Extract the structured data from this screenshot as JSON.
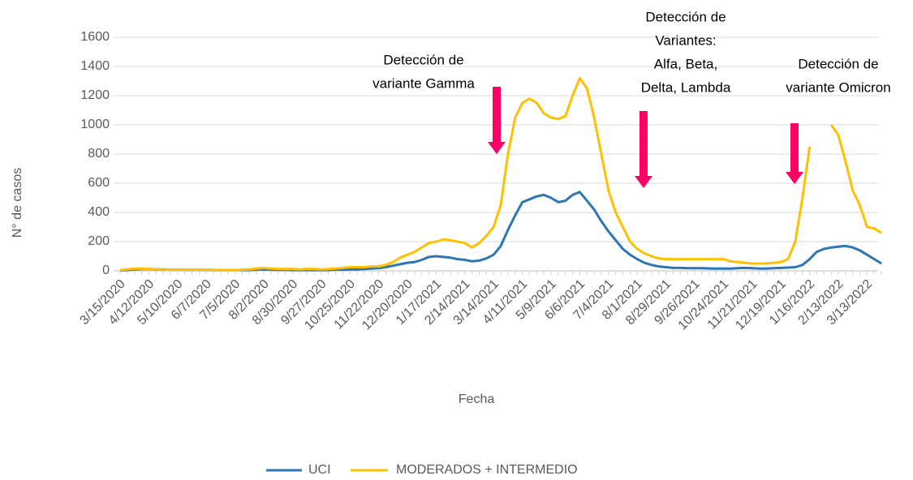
{
  "chart_data": {
    "type": "line",
    "x_label": "Fecha",
    "y_label": "N° de casos",
    "categories": [
      "3/15/2020",
      null,
      null,
      null,
      "4/12/2020",
      null,
      null,
      null,
      "5/10/2020",
      null,
      null,
      null,
      "6/7/2020",
      null,
      null,
      null,
      "7/5/2020",
      null,
      null,
      null,
      "8/2/2020",
      null,
      null,
      null,
      "8/30/2020",
      null,
      null,
      null,
      "9/27/2020",
      null,
      null,
      null,
      "10/25/2020",
      null,
      null,
      null,
      "11/22/2020",
      null,
      null,
      null,
      "12/20/2020",
      null,
      null,
      null,
      "1/17/2021",
      null,
      null,
      null,
      "2/14/2021",
      null,
      null,
      null,
      "3/14/2021",
      null,
      null,
      null,
      "4/11/2021",
      null,
      null,
      null,
      "5/9/2021",
      null,
      null,
      null,
      "6/6/2021",
      null,
      null,
      null,
      "7/4/2021",
      null,
      null,
      null,
      "8/1/2021",
      null,
      null,
      null,
      "8/29/2021",
      null,
      null,
      null,
      "9/26/2021",
      null,
      null,
      null,
      "10/24/2021",
      null,
      null,
      null,
      "11/21/2021",
      null,
      null,
      null,
      "12/19/2021",
      null,
      null,
      null,
      "1/16/2022",
      null,
      null,
      null,
      "2/13/2022",
      null,
      null,
      null,
      "3/13/2022",
      null,
      null
    ],
    "series": [
      {
        "name": "UCI",
        "color": "#2e75b6",
        "values": [
          3,
          5,
          10,
          12,
          12,
          10,
          10,
          8,
          8,
          7,
          7,
          7,
          6,
          5,
          5,
          4,
          5,
          5,
          5,
          8,
          10,
          8,
          6,
          6,
          5,
          5,
          5,
          5,
          5,
          5,
          8,
          8,
          10,
          10,
          12,
          15,
          18,
          25,
          35,
          45,
          55,
          60,
          75,
          95,
          100,
          95,
          90,
          80,
          75,
          65,
          70,
          85,
          110,
          170,
          280,
          380,
          470,
          490,
          510,
          520,
          500,
          470,
          480,
          520,
          540,
          480,
          420,
          340,
          270,
          210,
          150,
          110,
          80,
          55,
          40,
          30,
          25,
          20,
          20,
          18,
          18,
          18,
          16,
          15,
          15,
          15,
          18,
          20,
          18,
          15,
          15,
          18,
          20,
          22,
          25,
          40,
          80,
          130,
          150,
          160,
          165,
          170,
          160,
          140,
          110,
          80,
          50
        ]
      },
      {
        "name": "MODERADOS + INTERMEDIO",
        "color": "#ffc000",
        "values": [
          5,
          10,
          15,
          15,
          12,
          10,
          10,
          8,
          8,
          8,
          8,
          8,
          8,
          6,
          6,
          5,
          5,
          8,
          10,
          15,
          20,
          15,
          12,
          12,
          12,
          10,
          12,
          12,
          10,
          12,
          15,
          20,
          25,
          25,
          25,
          30,
          30,
          40,
          60,
          90,
          110,
          130,
          160,
          190,
          200,
          215,
          210,
          200,
          190,
          160,
          190,
          240,
          300,
          450,
          800,
          1050,
          1150,
          1180,
          1150,
          1080,
          1050,
          1040,
          1060,
          1200,
          1320,
          1250,
          1050,
          800,
          550,
          400,
          300,
          200,
          150,
          120,
          100,
          85,
          80,
          80,
          80,
          80,
          80,
          80,
          80,
          80,
          80,
          65,
          60,
          55,
          50,
          50,
          50,
          55,
          60,
          80,
          200,
          500,
          850,
          null,
          null,
          1000,
          930,
          750,
          550,
          450,
          300,
          290,
          260
        ]
      }
    ],
    "ylim": [
      0,
      1600
    ],
    "yticks": [
      0,
      200,
      400,
      600,
      800,
      1000,
      1200,
      1400,
      1600
    ],
    "grid": true,
    "legend": "bottom",
    "annotations": [
      {
        "lines": [
          "Detección de",
          "variante Gamma"
        ]
      },
      {
        "lines": [
          "Detección de",
          "Variantes:",
          "Alfa, Beta,",
          "Delta, Lambda"
        ]
      },
      {
        "lines": [
          "Detección de",
          "variante Omicron"
        ]
      }
    ]
  }
}
